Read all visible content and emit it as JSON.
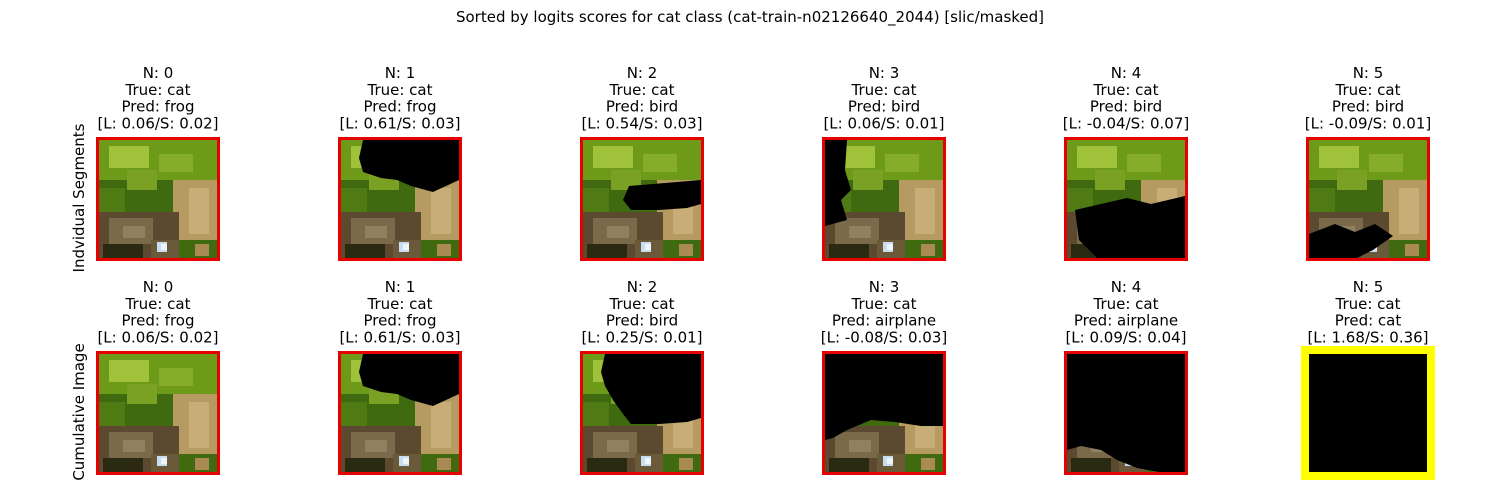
{
  "title": "Sorted by logits scores for cat class (cat-train-n02126640_2044) [slic/masked]",
  "row_labels": [
    "Indvidual Segments",
    "Cumulative Image"
  ],
  "colors": {
    "normal_border": "#e60000",
    "highlight_border": "#ffff00",
    "mask": "#000000",
    "leaf_dark": "#3f6a0f",
    "leaf_mid": "#6e9a1a",
    "leaf_light": "#9fc23a",
    "bark": "#5b4a2f",
    "tan": "#b59a62",
    "shadow": "#2a2a12",
    "sky": "#c9ddf0"
  },
  "chart_data": [
    {
      "type": "table",
      "row_label": "Indvidual Segments",
      "panels": [
        {
          "n": "N: 0",
          "true": "True: cat",
          "pred": "Pred: frog",
          "score": "[L: 0.06/S: 0.02]",
          "highlight": false,
          "mask": "none"
        },
        {
          "n": "N: 1",
          "true": "True: cat",
          "pred": "Pred: frog",
          "score": "[L: 0.61/S: 0.03]",
          "highlight": false,
          "mask": "top-right"
        },
        {
          "n": "N: 2",
          "true": "True: cat",
          "pred": "Pred: bird",
          "score": "[L: 0.54/S: 0.03]",
          "highlight": false,
          "mask": "mid-right"
        },
        {
          "n": "N: 3",
          "true": "True: cat",
          "pred": "Pred: bird",
          "score": "[L: 0.06/S: 0.01]",
          "highlight": false,
          "mask": "left"
        },
        {
          "n": "N: 4",
          "true": "True: cat",
          "pred": "Pred: bird",
          "score": "[L: -0.04/S: 0.07]",
          "highlight": false,
          "mask": "bottom"
        },
        {
          "n": "N: 5",
          "true": "True: cat",
          "pred": "Pred: bird",
          "score": "[L: -0.09/S: 0.01]",
          "highlight": false,
          "mask": "bottom-left"
        }
      ]
    },
    {
      "type": "table",
      "row_label": "Cumulative Image",
      "panels": [
        {
          "n": "N: 0",
          "true": "True: cat",
          "pred": "Pred: frog",
          "score": "[L: 0.06/S: 0.02]",
          "highlight": false,
          "mask": "none"
        },
        {
          "n": "N: 1",
          "true": "True: cat",
          "pred": "Pred: frog",
          "score": "[L: 0.61/S: 0.03]",
          "highlight": false,
          "mask": "top-right"
        },
        {
          "n": "N: 2",
          "true": "True: cat",
          "pred": "Pred: bird",
          "score": "[L: 0.25/S: 0.01]",
          "highlight": false,
          "mask": "top-right+mid"
        },
        {
          "n": "N: 3",
          "true": "True: cat",
          "pred": "Pred: airplane",
          "score": "[L: -0.08/S: 0.03]",
          "highlight": false,
          "mask": "top-all"
        },
        {
          "n": "N: 4",
          "true": "True: cat",
          "pred": "Pred: airplane",
          "score": "[L: 0.09/S: 0.04]",
          "highlight": false,
          "mask": "almost-all"
        },
        {
          "n": "N: 5",
          "true": "True: cat",
          "pred": "Pred: cat",
          "score": "[L: 1.68/S: 0.36]",
          "highlight": true,
          "mask": "all"
        }
      ]
    }
  ]
}
